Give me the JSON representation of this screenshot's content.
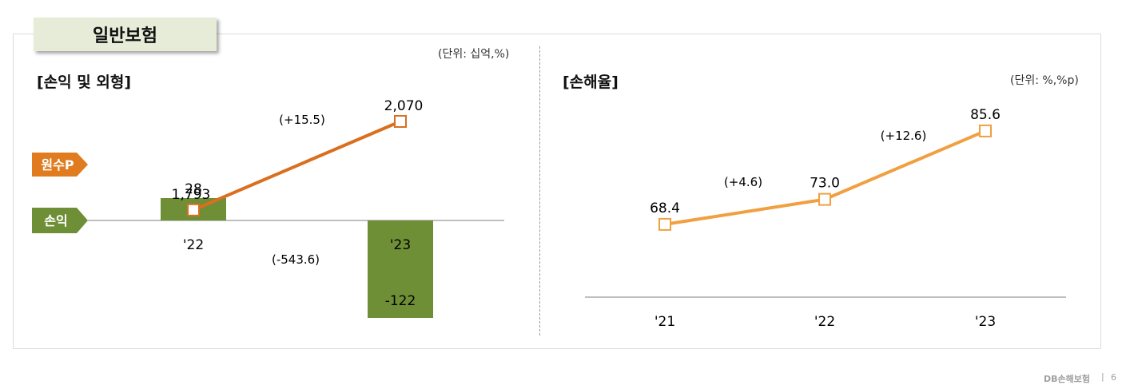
{
  "section_tab": "일반보험",
  "left_panel": {
    "heading": "[손익 및 외형]",
    "unit": "(단위: 십억,%)",
    "premium_label": "원수P",
    "profit_label": "손익"
  },
  "right_panel": {
    "heading": "[손해율]",
    "unit": "(단위: %,%p)"
  },
  "footer": {
    "brand": "DB손해보험",
    "separator": "|",
    "page": "6"
  },
  "colors": {
    "premium_line": "#d96f1f",
    "profit_bar": "#6f8f36",
    "loss_ratio_line": "#f0a040",
    "marker_fill": "#ffffff",
    "axis": "#999999",
    "tab_bg": "#e7ecd9"
  },
  "chart_data": [
    {
      "type": "bar",
      "title": "[손익 및 외형]",
      "categories": [
        "'22",
        "'23"
      ],
      "series": [
        {
          "name": "원수P",
          "kind": "line",
          "values": [
            1793,
            2070
          ],
          "value_labels": [
            "1,793",
            "2,070"
          ]
        },
        {
          "name": "손익",
          "kind": "bar",
          "values": [
            28,
            -122
          ],
          "value_labels": [
            "28",
            "-122"
          ]
        }
      ],
      "annotations": {
        "premium_change": "(+15.5)",
        "profit_change": "(-543.6)"
      },
      "premium_range": [
        1600,
        2300
      ],
      "profit_range": [
        -130,
        40
      ],
      "grid": false
    },
    {
      "type": "line",
      "title": "[손해율]",
      "categories": [
        "'21",
        "'22",
        "'23"
      ],
      "series": [
        {
          "name": "",
          "values": [
            68.4,
            73.0,
            85.6
          ],
          "value_labels": [
            "68.4",
            "73.0",
            "85.6"
          ]
        }
      ],
      "annotations": [
        "(+4.6)",
        "(+12.6)"
      ],
      "ylim": [
        55,
        95
      ],
      "grid": false
    }
  ]
}
